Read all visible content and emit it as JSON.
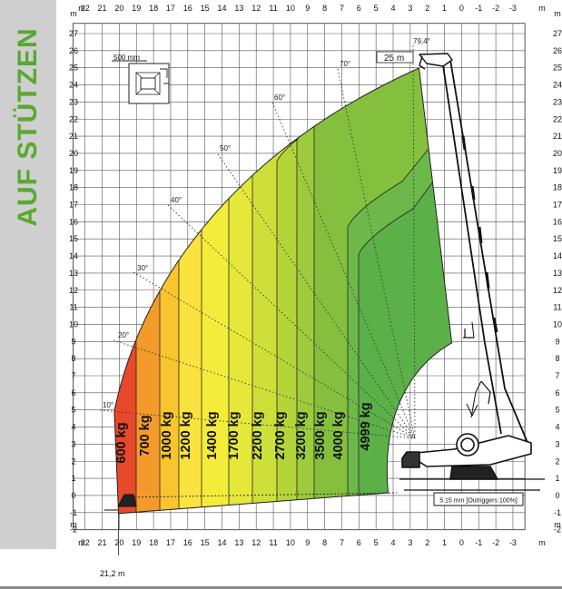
{
  "side_title": "AUF STÜTZEN",
  "axis_unit": "m",
  "x_ticks": [
    "22",
    "21",
    "20",
    "19",
    "18",
    "17",
    "16",
    "15",
    "14",
    "13",
    "12",
    "11",
    "10",
    "9",
    "8",
    "7",
    "6",
    "5",
    "4",
    "3",
    "2",
    "1",
    "0",
    "-1",
    "-2",
    "-3"
  ],
  "y_ticks": [
    "27",
    "26",
    "25",
    "24",
    "23",
    "22",
    "21",
    "20",
    "19",
    "18",
    "17",
    "16",
    "15",
    "14",
    "13",
    "12",
    "11",
    "10",
    "9",
    "8",
    "7",
    "6",
    "5",
    "4",
    "3",
    "2",
    "1",
    "0",
    "-1",
    "-2"
  ],
  "load_labels": [
    "600 kg",
    "700 kg",
    "1000 kg",
    "1200 kg",
    "1400 kg",
    "1700 kg",
    "2200 kg",
    "2700 kg",
    "3200 kg",
    "3500 kg",
    "4000 kg",
    "4999 kg"
  ],
  "load_colors": [
    "#e8492b",
    "#f39a2b",
    "#f8c52e",
    "#fbe33f",
    "#f4ec3a",
    "#e3e83a",
    "#cde03a",
    "#b3d53a",
    "#9ccb3c",
    "#84c03e",
    "#6db84a",
    "#5cb048"
  ],
  "angle_labels": [
    "10°",
    "20°",
    "30°",
    "40°",
    "50°",
    "60°",
    "70°",
    "79,4°"
  ],
  "boom_length_label": "25 m",
  "max_reach_label": "21,2 m",
  "scale_label": "500 mm",
  "outrigger_label": "5.15 mm [Outriggers 100%]"
}
